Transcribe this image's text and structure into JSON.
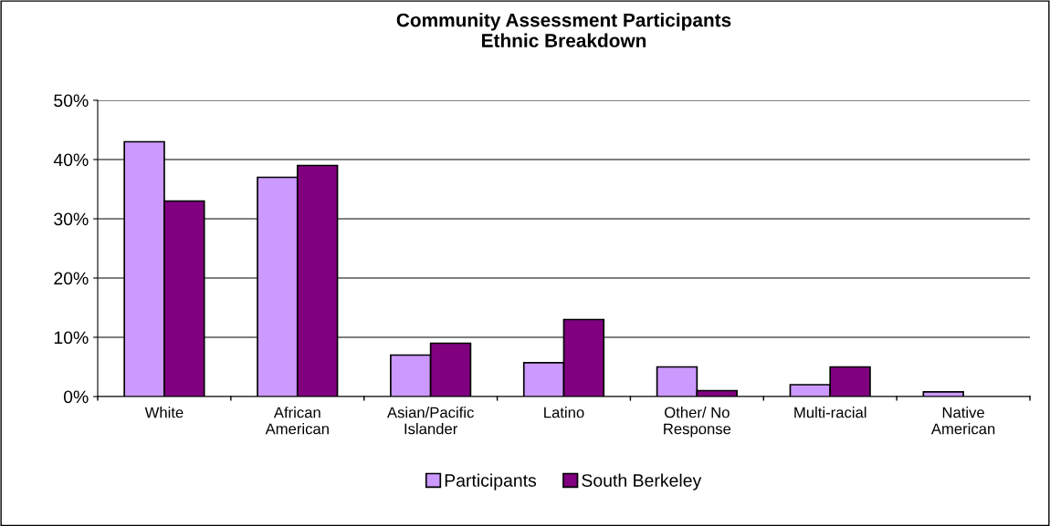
{
  "chart_data": {
    "type": "bar",
    "title": "Community Assessment Participants\nEthnic Breakdown",
    "categories": [
      "White",
      "African\nAmerican",
      "Asian/Pacific\nIslander",
      "Latino",
      "Other/ No\nResponse",
      "Multi-racial",
      "Native\nAmerican"
    ],
    "series": [
      {
        "name": "Participants",
        "color": "#cc99ff",
        "values": [
          43,
          37,
          7,
          5.7,
          5,
          2,
          0.8
        ]
      },
      {
        "name": "South Berkeley",
        "color": "#800080",
        "values": [
          33,
          39,
          9,
          13,
          1,
          5,
          null
        ]
      }
    ],
    "ylim": [
      0,
      50
    ],
    "yticks": [
      {
        "value": 0,
        "label": "0%"
      },
      {
        "value": 10,
        "label": "10%"
      },
      {
        "value": 20,
        "label": "20%"
      },
      {
        "value": 30,
        "label": "30%"
      },
      {
        "value": 40,
        "label": "40%"
      },
      {
        "value": 50,
        "label": "50%"
      }
    ],
    "grid": "y",
    "legend": "bottom"
  }
}
